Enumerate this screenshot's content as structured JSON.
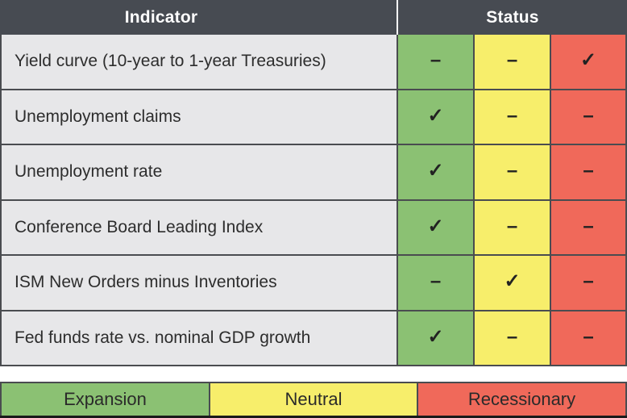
{
  "header": {
    "indicator_label": "Indicator",
    "status_label": "Status"
  },
  "table": {
    "rows": [
      {
        "indicator": "Yield curve (10-year to 1-year Treasuries)",
        "marks": {
          "expansion": "–",
          "neutral": "–",
          "recessionary": "✓"
        }
      },
      {
        "indicator": "Unemployment claims",
        "marks": {
          "expansion": "✓",
          "neutral": "–",
          "recessionary": "–"
        }
      },
      {
        "indicator": "Unemployment rate",
        "marks": {
          "expansion": "✓",
          "neutral": "–",
          "recessionary": "–"
        }
      },
      {
        "indicator": "Conference Board Leading Index",
        "marks": {
          "expansion": "✓",
          "neutral": "–",
          "recessionary": "–"
        }
      },
      {
        "indicator": "ISM New Orders minus Inventories",
        "marks": {
          "expansion": "–",
          "neutral": "✓",
          "recessionary": "–"
        }
      },
      {
        "indicator": "Fed funds rate vs. nominal GDP growth",
        "marks": {
          "expansion": "✓",
          "neutral": "–",
          "recessionary": "–"
        }
      }
    ]
  },
  "legend": {
    "items": [
      {
        "label": "Expansion",
        "color": "#8bc173"
      },
      {
        "label": "Neutral",
        "color": "#f7ee6b"
      },
      {
        "label": "Recessionary",
        "color": "#f0695a"
      }
    ]
  },
  "colors": {
    "header_bg": "#474b52",
    "row_bg": "#e7e7e9",
    "border": "#4a4c50",
    "expansion": "#8bc173",
    "neutral": "#f7ee6b",
    "recessionary": "#f0695a",
    "text_dark": "#2d2d2d"
  },
  "chart_data": {
    "type": "table",
    "title": "Recession indicators status table",
    "columns": [
      "Indicator",
      "Status"
    ],
    "status_categories": [
      "Expansion",
      "Neutral",
      "Recessionary"
    ],
    "rows": [
      {
        "indicator": "Yield curve (10-year to 1-year Treasuries)",
        "status": "Recessionary"
      },
      {
        "indicator": "Unemployment claims",
        "status": "Expansion"
      },
      {
        "indicator": "Unemployment rate",
        "status": "Expansion"
      },
      {
        "indicator": "Conference Board Leading Index",
        "status": "Expansion"
      },
      {
        "indicator": "ISM New Orders minus Inventories",
        "status": "Neutral"
      },
      {
        "indicator": "Fed funds rate vs. nominal GDP growth",
        "status": "Expansion"
      }
    ],
    "legend": [
      "Expansion",
      "Neutral",
      "Recessionary"
    ],
    "legend_position": "bottom"
  }
}
